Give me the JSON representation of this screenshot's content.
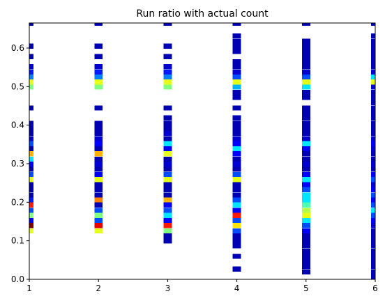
{
  "chart_data": {
    "type": "heatmap",
    "title": "Run ratio with actual count",
    "xlabel": "",
    "ylabel": "",
    "xlim": [
      1,
      6
    ],
    "ylim": [
      0,
      0.665
    ],
    "bin_height": 0.0133,
    "column_width": 0.12,
    "xticks": [
      1,
      2,
      3,
      4,
      5,
      6
    ],
    "xtick_labels": [
      "1",
      "2",
      "3",
      "4",
      "5",
      "6"
    ],
    "yticks": [
      0.0,
      0.1,
      0.2,
      0.3,
      0.4,
      0.5,
      0.6
    ],
    "ytick_labels": [
      "0.0",
      "0.1",
      "0.2",
      "0.3",
      "0.4",
      "0.5",
      "0.6"
    ],
    "colormap": "jet",
    "columns": [
      {
        "x": 1,
        "cells": [
          {
            "y": 0.658,
            "v": 0.05
          },
          {
            "y": 0.598,
            "v": 0.05
          },
          {
            "y": 0.571,
            "v": 0.05
          },
          {
            "y": 0.545,
            "v": 0.08
          },
          {
            "y": 0.531,
            "v": 0.15
          },
          {
            "y": 0.518,
            "v": 0.25
          },
          {
            "y": 0.505,
            "v": 0.6
          },
          {
            "y": 0.492,
            "v": 0.5
          },
          {
            "y": 0.438,
            "v": 0.05
          },
          {
            "y": 0.398,
            "v": 0.05
          },
          {
            "y": 0.385,
            "v": 0.05
          },
          {
            "y": 0.372,
            "v": 0.05
          },
          {
            "y": 0.358,
            "v": 0.08
          },
          {
            "y": 0.345,
            "v": 0.2
          },
          {
            "y": 0.332,
            "v": 0.05
          },
          {
            "y": 0.319,
            "v": 0.7
          },
          {
            "y": 0.305,
            "v": 0.35
          },
          {
            "y": 0.292,
            "v": 0.12
          },
          {
            "y": 0.279,
            "v": 0.05
          },
          {
            "y": 0.265,
            "v": 0.2
          },
          {
            "y": 0.252,
            "v": 0.6
          },
          {
            "y": 0.239,
            "v": 0.05
          },
          {
            "y": 0.226,
            "v": 0.05
          },
          {
            "y": 0.212,
            "v": 0.05
          },
          {
            "y": 0.199,
            "v": 0.15
          },
          {
            "y": 0.186,
            "v": 0.85
          },
          {
            "y": 0.172,
            "v": 0.2
          },
          {
            "y": 0.159,
            "v": 0.5
          },
          {
            "y": 0.146,
            "v": 0.12
          },
          {
            "y": 0.133,
            "v": 1.0
          },
          {
            "y": 0.119,
            "v": 0.6
          }
        ]
      },
      {
        "x": 2,
        "cells": [
          {
            "y": 0.658,
            "v": 0.05
          },
          {
            "y": 0.598,
            "v": 0.05
          },
          {
            "y": 0.571,
            "v": 0.05
          },
          {
            "y": 0.545,
            "v": 0.08
          },
          {
            "y": 0.531,
            "v": 0.15
          },
          {
            "y": 0.518,
            "v": 0.25
          },
          {
            "y": 0.505,
            "v": 0.6
          },
          {
            "y": 0.492,
            "v": 0.5
          },
          {
            "y": 0.438,
            "v": 0.05
          },
          {
            "y": 0.398,
            "v": 0.05
          },
          {
            "y": 0.385,
            "v": 0.05
          },
          {
            "y": 0.372,
            "v": 0.05
          },
          {
            "y": 0.358,
            "v": 0.08
          },
          {
            "y": 0.345,
            "v": 0.12
          },
          {
            "y": 0.332,
            "v": 0.05
          },
          {
            "y": 0.319,
            "v": 0.7
          },
          {
            "y": 0.305,
            "v": 0.05
          },
          {
            "y": 0.292,
            "v": 0.08
          },
          {
            "y": 0.279,
            "v": 0.05
          },
          {
            "y": 0.265,
            "v": 0.12
          },
          {
            "y": 0.252,
            "v": 0.6
          },
          {
            "y": 0.239,
            "v": 0.05
          },
          {
            "y": 0.226,
            "v": 0.05
          },
          {
            "y": 0.212,
            "v": 0.05
          },
          {
            "y": 0.199,
            "v": 0.75
          },
          {
            "y": 0.186,
            "v": 0.05
          },
          {
            "y": 0.172,
            "v": 0.2
          },
          {
            "y": 0.159,
            "v": 0.5
          },
          {
            "y": 0.146,
            "v": 0.2
          },
          {
            "y": 0.133,
            "v": 0.9
          },
          {
            "y": 0.119,
            "v": 0.6
          }
        ]
      },
      {
        "x": 3,
        "cells": [
          {
            "y": 0.658,
            "v": 0.05
          },
          {
            "y": 0.598,
            "v": 0.05
          },
          {
            "y": 0.571,
            "v": 0.05
          },
          {
            "y": 0.545,
            "v": 0.08
          },
          {
            "y": 0.531,
            "v": 0.15
          },
          {
            "y": 0.518,
            "v": 0.25
          },
          {
            "y": 0.505,
            "v": 0.6
          },
          {
            "y": 0.492,
            "v": 0.5
          },
          {
            "y": 0.438,
            "v": 0.05
          },
          {
            "y": 0.412,
            "v": 0.05
          },
          {
            "y": 0.398,
            "v": 0.05
          },
          {
            "y": 0.385,
            "v": 0.05
          },
          {
            "y": 0.372,
            "v": 0.08
          },
          {
            "y": 0.358,
            "v": 0.05
          },
          {
            "y": 0.345,
            "v": 0.35
          },
          {
            "y": 0.332,
            "v": 0.12
          },
          {
            "y": 0.319,
            "v": 0.6
          },
          {
            "y": 0.305,
            "v": 0.05
          },
          {
            "y": 0.292,
            "v": 0.08
          },
          {
            "y": 0.279,
            "v": 0.05
          },
          {
            "y": 0.265,
            "v": 0.2
          },
          {
            "y": 0.252,
            "v": 0.6
          },
          {
            "y": 0.239,
            "v": 0.05
          },
          {
            "y": 0.226,
            "v": 0.05
          },
          {
            "y": 0.212,
            "v": 0.05
          },
          {
            "y": 0.199,
            "v": 0.7
          },
          {
            "y": 0.186,
            "v": 0.12
          },
          {
            "y": 0.172,
            "v": 0.2
          },
          {
            "y": 0.159,
            "v": 0.35
          },
          {
            "y": 0.146,
            "v": 0.12
          },
          {
            "y": 0.133,
            "v": 0.85
          },
          {
            "y": 0.119,
            "v": 0.5
          },
          {
            "y": 0.106,
            "v": 0.05
          },
          {
            "y": 0.093,
            "v": 0.05
          }
        ]
      },
      {
        "x": 4,
        "cells": [
          {
            "y": 0.658,
            "v": 0.05
          },
          {
            "y": 0.625,
            "v": 0.05
          },
          {
            "y": 0.611,
            "v": 0.05
          },
          {
            "y": 0.598,
            "v": 0.05
          },
          {
            "y": 0.585,
            "v": 0.05
          },
          {
            "y": 0.558,
            "v": 0.05
          },
          {
            "y": 0.545,
            "v": 0.05
          },
          {
            "y": 0.531,
            "v": 0.08
          },
          {
            "y": 0.518,
            "v": 0.2
          },
          {
            "y": 0.505,
            "v": 0.6
          },
          {
            "y": 0.492,
            "v": 0.3
          },
          {
            "y": 0.478,
            "v": 0.05
          },
          {
            "y": 0.465,
            "v": 0.05
          },
          {
            "y": 0.438,
            "v": 0.05
          },
          {
            "y": 0.412,
            "v": 0.05
          },
          {
            "y": 0.398,
            "v": 0.05
          },
          {
            "y": 0.385,
            "v": 0.05
          },
          {
            "y": 0.372,
            "v": 0.05
          },
          {
            "y": 0.358,
            "v": 0.08
          },
          {
            "y": 0.345,
            "v": 0.12
          },
          {
            "y": 0.332,
            "v": 0.35
          },
          {
            "y": 0.319,
            "v": 0.12
          },
          {
            "y": 0.305,
            "v": 0.05
          },
          {
            "y": 0.292,
            "v": 0.08
          },
          {
            "y": 0.279,
            "v": 0.05
          },
          {
            "y": 0.265,
            "v": 0.2
          },
          {
            "y": 0.252,
            "v": 0.6
          },
          {
            "y": 0.239,
            "v": 0.05
          },
          {
            "y": 0.226,
            "v": 0.05
          },
          {
            "y": 0.212,
            "v": 0.05
          },
          {
            "y": 0.199,
            "v": 0.2
          },
          {
            "y": 0.186,
            "v": 0.35
          },
          {
            "y": 0.172,
            "v": 0.12
          },
          {
            "y": 0.159,
            "v": 0.85
          },
          {
            "y": 0.146,
            "v": 0.2
          },
          {
            "y": 0.133,
            "v": 0.65
          },
          {
            "y": 0.119,
            "v": 0.2
          },
          {
            "y": 0.106,
            "v": 0.05
          },
          {
            "y": 0.093,
            "v": 0.05
          },
          {
            "y": 0.08,
            "v": 0.05
          },
          {
            "y": 0.053,
            "v": 0.05
          },
          {
            "y": 0.02,
            "v": 0.05
          }
        ]
      },
      {
        "x": 5,
        "cells": [
          {
            "y": 0.658,
            "v": 0.05
          },
          {
            "y": 0.611,
            "v": 0.05
          },
          {
            "y": 0.598,
            "v": 0.05
          },
          {
            "y": 0.585,
            "v": 0.05
          },
          {
            "y": 0.571,
            "v": 0.05
          },
          {
            "y": 0.558,
            "v": 0.05
          },
          {
            "y": 0.545,
            "v": 0.05
          },
          {
            "y": 0.531,
            "v": 0.08
          },
          {
            "y": 0.518,
            "v": 0.2
          },
          {
            "y": 0.505,
            "v": 0.6
          },
          {
            "y": 0.492,
            "v": 0.35
          },
          {
            "y": 0.478,
            "v": 0.05
          },
          {
            "y": 0.465,
            "v": 0.05
          },
          {
            "y": 0.438,
            "v": 0.05
          },
          {
            "y": 0.425,
            "v": 0.05
          },
          {
            "y": 0.412,
            "v": 0.05
          },
          {
            "y": 0.398,
            "v": 0.05
          },
          {
            "y": 0.385,
            "v": 0.05
          },
          {
            "y": 0.372,
            "v": 0.05
          },
          {
            "y": 0.358,
            "v": 0.08
          },
          {
            "y": 0.345,
            "v": 0.35
          },
          {
            "y": 0.332,
            "v": 0.12
          },
          {
            "y": 0.319,
            "v": 0.05
          },
          {
            "y": 0.305,
            "v": 0.05
          },
          {
            "y": 0.292,
            "v": 0.08
          },
          {
            "y": 0.279,
            "v": 0.05
          },
          {
            "y": 0.265,
            "v": 0.12
          },
          {
            "y": 0.252,
            "v": 0.35
          },
          {
            "y": 0.239,
            "v": 0.12
          },
          {
            "y": 0.226,
            "v": 0.2
          },
          {
            "y": 0.212,
            "v": 0.35
          },
          {
            "y": 0.199,
            "v": 0.35
          },
          {
            "y": 0.186,
            "v": 0.45
          },
          {
            "y": 0.172,
            "v": 0.55
          },
          {
            "y": 0.159,
            "v": 0.6
          },
          {
            "y": 0.146,
            "v": 0.35
          },
          {
            "y": 0.133,
            "v": 0.2
          },
          {
            "y": 0.119,
            "v": 0.12
          },
          {
            "y": 0.106,
            "v": 0.05
          },
          {
            "y": 0.093,
            "v": 0.05
          },
          {
            "y": 0.08,
            "v": 0.05
          },
          {
            "y": 0.066,
            "v": 0.05
          },
          {
            "y": 0.053,
            "v": 0.05
          },
          {
            "y": 0.04,
            "v": 0.05
          },
          {
            "y": 0.027,
            "v": 0.05
          },
          {
            "y": 0.013,
            "v": 0.05
          }
        ]
      },
      {
        "x": 6,
        "cells": [
          {
            "y": 0.658,
            "v": 0.05
          },
          {
            "y": 0.625,
            "v": 0.05
          },
          {
            "y": 0.611,
            "v": 0.05
          },
          {
            "y": 0.598,
            "v": 0.05
          },
          {
            "y": 0.585,
            "v": 0.05
          },
          {
            "y": 0.571,
            "v": 0.05
          },
          {
            "y": 0.558,
            "v": 0.05
          },
          {
            "y": 0.545,
            "v": 0.05
          },
          {
            "y": 0.531,
            "v": 0.08
          },
          {
            "y": 0.518,
            "v": 0.35
          },
          {
            "y": 0.505,
            "v": 0.6
          },
          {
            "y": 0.492,
            "v": 0.08
          },
          {
            "y": 0.478,
            "v": 0.05
          },
          {
            "y": 0.465,
            "v": 0.05
          },
          {
            "y": 0.452,
            "v": 0.05
          },
          {
            "y": 0.438,
            "v": 0.05
          },
          {
            "y": 0.425,
            "v": 0.05
          },
          {
            "y": 0.412,
            "v": 0.05
          },
          {
            "y": 0.398,
            "v": 0.05
          },
          {
            "y": 0.385,
            "v": 0.05
          },
          {
            "y": 0.372,
            "v": 0.05
          },
          {
            "y": 0.358,
            "v": 0.08
          },
          {
            "y": 0.345,
            "v": 0.12
          },
          {
            "y": 0.332,
            "v": 0.08
          },
          {
            "y": 0.319,
            "v": 0.05
          },
          {
            "y": 0.305,
            "v": 0.05
          },
          {
            "y": 0.292,
            "v": 0.08
          },
          {
            "y": 0.279,
            "v": 0.05
          },
          {
            "y": 0.265,
            "v": 0.12
          },
          {
            "y": 0.252,
            "v": 0.2
          },
          {
            "y": 0.239,
            "v": 0.08
          },
          {
            "y": 0.226,
            "v": 0.12
          },
          {
            "y": 0.212,
            "v": 0.2
          },
          {
            "y": 0.199,
            "v": 0.12
          },
          {
            "y": 0.186,
            "v": 0.2
          },
          {
            "y": 0.172,
            "v": 0.35
          },
          {
            "y": 0.159,
            "v": 0.2
          },
          {
            "y": 0.146,
            "v": 0.12
          },
          {
            "y": 0.133,
            "v": 0.08
          },
          {
            "y": 0.119,
            "v": 0.05
          },
          {
            "y": 0.106,
            "v": 0.05
          },
          {
            "y": 0.093,
            "v": 0.05
          },
          {
            "y": 0.08,
            "v": 0.05
          },
          {
            "y": 0.066,
            "v": 0.05
          },
          {
            "y": 0.053,
            "v": 0.05
          },
          {
            "y": 0.04,
            "v": 0.05
          },
          {
            "y": 0.027,
            "v": 0.05
          },
          {
            "y": 0.013,
            "v": 0.05
          },
          {
            "y": 0.0,
            "v": 0.05
          }
        ]
      }
    ]
  }
}
